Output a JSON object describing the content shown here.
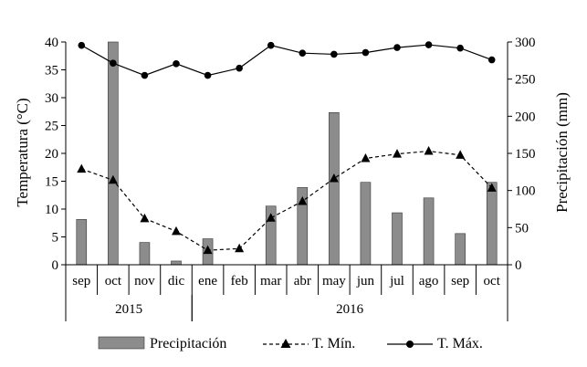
{
  "chart_data": {
    "type": "bar",
    "categories": [
      "sep",
      "oct",
      "nov",
      "dic",
      "ene",
      "feb",
      "mar",
      "abr",
      "may",
      "jun",
      "jul",
      "ago",
      "sep",
      "oct"
    ],
    "year_groups": [
      {
        "label": "2015",
        "start": 0,
        "end": 3
      },
      {
        "label": "2016",
        "start": 4,
        "end": 13
      }
    ],
    "left_axis": {
      "label": "Temperatura (°C)",
      "ylim": [
        0,
        40
      ],
      "ticks": [
        "0",
        "5",
        "10",
        "15",
        "20",
        "25",
        "30",
        "35",
        "40"
      ]
    },
    "right_axis": {
      "label": "Precipitación (mm)",
      "ylim": [
        0,
        300
      ],
      "ticks": [
        "0",
        "50",
        "100",
        "150",
        "200",
        "250",
        "300"
      ]
    },
    "series": [
      {
        "name": "Precipitación",
        "type": "bar",
        "axis": "right",
        "color": "#8c8c8c",
        "values": [
          61,
          300,
          30,
          5,
          35,
          0,
          79,
          104,
          205,
          111,
          70,
          90,
          42,
          111
        ]
      },
      {
        "name": "T. Mín.",
        "type": "line",
        "axis": "left",
        "marker": "triangle",
        "dash": "dashed",
        "color": "#000000",
        "values": [
          17.2,
          15.2,
          8.3,
          6.0,
          2.6,
          2.9,
          8.4,
          11.4,
          15.5,
          19.1,
          19.9,
          20.4,
          19.7,
          13.8
        ]
      },
      {
        "name": "T. Máx.",
        "type": "line",
        "axis": "left",
        "marker": "circle",
        "dash": "solid",
        "color": "#000000",
        "values": [
          39.4,
          36.2,
          34.0,
          36.1,
          34.0,
          35.3,
          39.4,
          38.0,
          37.8,
          38.1,
          39.0,
          39.5,
          38.9,
          36.8
        ]
      }
    ],
    "grid": false,
    "legend_position": "bottom"
  }
}
